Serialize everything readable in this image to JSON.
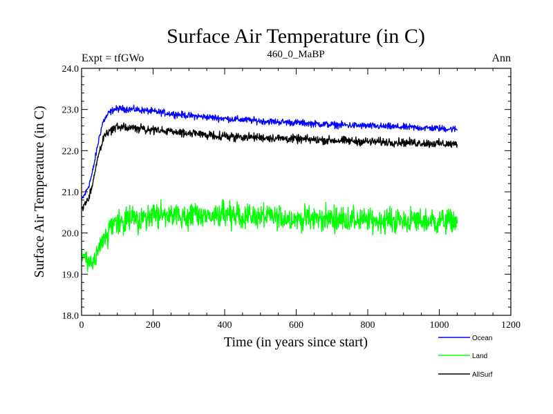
{
  "chart_data": {
    "type": "line",
    "title": "Surface Air Temperature (in C)",
    "subtitle": "460_0_MaBP",
    "left_annotation": "Expt = tfGWo",
    "right_annotation": "Ann",
    "xlabel": "Time (in years since start)",
    "ylabel": "Surface Air Temperature (in C)",
    "xlim": [
      0,
      1200
    ],
    "ylim": [
      18.0,
      24.0
    ],
    "x_ticks": [
      0,
      200,
      400,
      600,
      800,
      1000,
      1200
    ],
    "x_tick_labels": [
      "0",
      "200",
      "400",
      "600",
      "800",
      "1000",
      "1200"
    ],
    "y_ticks": [
      18.0,
      19.0,
      20.0,
      21.0,
      22.0,
      23.0,
      24.0
    ],
    "y_tick_labels": [
      "18.0",
      "19.0",
      "20.0",
      "21.0",
      "22.0",
      "23.0",
      "24.0"
    ],
    "grid": false,
    "legend_position": "bottom-right, outside plot",
    "x_extent": [
      0,
      1050
    ],
    "series": [
      {
        "name": "Ocean",
        "color": "#0000ff",
        "noise": 0.04,
        "anchors": [
          [
            0,
            20.8
          ],
          [
            10,
            20.95
          ],
          [
            20,
            21.15
          ],
          [
            30,
            21.45
          ],
          [
            40,
            21.9
          ],
          [
            50,
            22.35
          ],
          [
            60,
            22.7
          ],
          [
            75,
            22.9
          ],
          [
            90,
            23.0
          ],
          [
            110,
            23.02
          ],
          [
            150,
            23.0
          ],
          [
            200,
            22.95
          ],
          [
            300,
            22.85
          ],
          [
            400,
            22.78
          ],
          [
            500,
            22.72
          ],
          [
            600,
            22.68
          ],
          [
            700,
            22.63
          ],
          [
            800,
            22.6
          ],
          [
            900,
            22.57
          ],
          [
            1000,
            22.54
          ],
          [
            1050,
            22.52
          ]
        ]
      },
      {
        "name": "Land",
        "color": "#00ff00",
        "noise": 0.15,
        "anchors": [
          [
            0,
            19.5
          ],
          [
            10,
            19.35
          ],
          [
            20,
            19.2
          ],
          [
            30,
            19.2
          ],
          [
            45,
            19.5
          ],
          [
            60,
            19.8
          ],
          [
            80,
            20.1
          ],
          [
            100,
            20.25
          ],
          [
            150,
            20.35
          ],
          [
            200,
            20.42
          ],
          [
            300,
            20.42
          ],
          [
            400,
            20.42
          ],
          [
            500,
            20.4
          ],
          [
            600,
            20.35
          ],
          [
            700,
            20.35
          ],
          [
            800,
            20.3
          ],
          [
            900,
            20.3
          ],
          [
            1000,
            20.28
          ],
          [
            1050,
            20.3
          ]
        ]
      },
      {
        "name": "AllSurf",
        "color": "#000000",
        "noise": 0.05,
        "anchors": [
          [
            0,
            20.6
          ],
          [
            10,
            20.7
          ],
          [
            20,
            20.85
          ],
          [
            30,
            21.15
          ],
          [
            40,
            21.6
          ],
          [
            50,
            22.0
          ],
          [
            60,
            22.3
          ],
          [
            75,
            22.45
          ],
          [
            90,
            22.55
          ],
          [
            120,
            22.57
          ],
          [
            200,
            22.5
          ],
          [
            300,
            22.42
          ],
          [
            400,
            22.35
          ],
          [
            500,
            22.32
          ],
          [
            600,
            22.28
          ],
          [
            700,
            22.25
          ],
          [
            800,
            22.22
          ],
          [
            900,
            22.2
          ],
          [
            1000,
            22.17
          ],
          [
            1050,
            22.15
          ]
        ]
      }
    ]
  }
}
